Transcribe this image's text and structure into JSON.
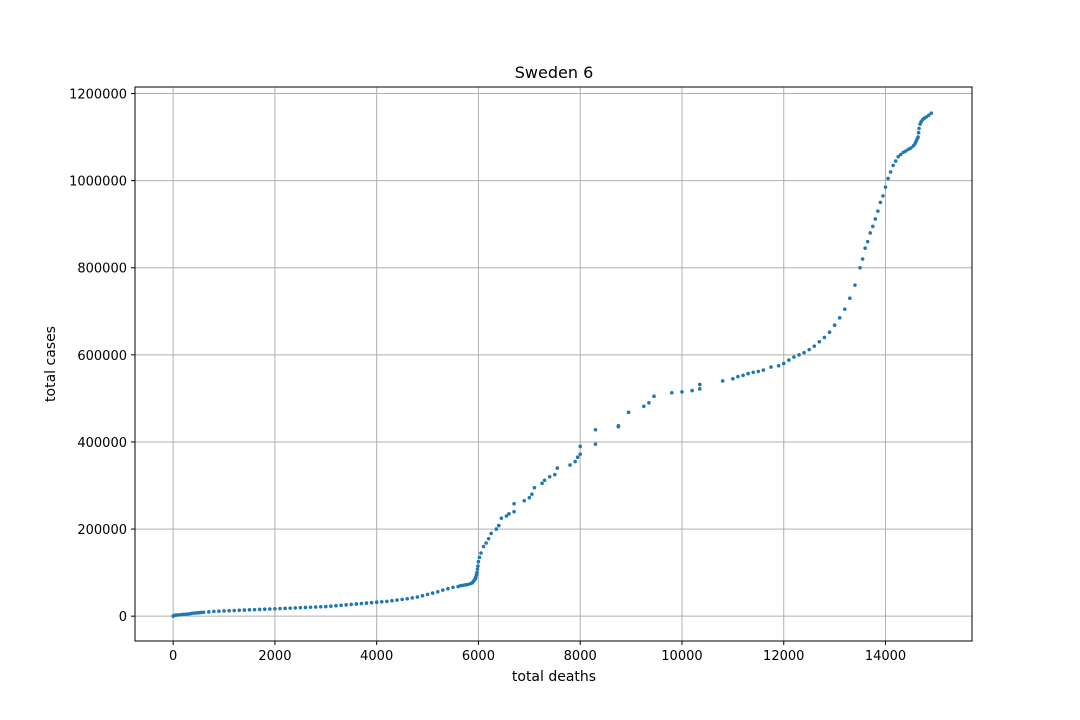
{
  "chart_data": {
    "type": "scatter",
    "title": "Sweden 6",
    "xlabel": "total deaths",
    "ylabel": "total cases",
    "xlim": [
      -750,
      15700
    ],
    "ylim": [
      -57000,
      1215000
    ],
    "x_ticks": [
      0,
      2000,
      4000,
      6000,
      8000,
      10000,
      12000,
      14000
    ],
    "y_ticks": [
      0,
      200000,
      400000,
      600000,
      800000,
      1000000,
      1200000
    ],
    "grid": true,
    "marker_color": "#1f77b4",
    "series": [
      {
        "points": [
          [
            0,
            0
          ],
          [
            10,
            1000
          ],
          [
            30,
            2000
          ],
          [
            60,
            2500
          ],
          [
            100,
            3000
          ],
          [
            150,
            3500
          ],
          [
            200,
            4000
          ],
          [
            250,
            4500
          ],
          [
            300,
            5000
          ],
          [
            350,
            6000
          ],
          [
            400,
            7000
          ],
          [
            450,
            7500
          ],
          [
            500,
            8000
          ],
          [
            550,
            8500
          ],
          [
            600,
            9000
          ],
          [
            700,
            10000
          ],
          [
            800,
            11000
          ],
          [
            900,
            11500
          ],
          [
            1000,
            12000
          ],
          [
            1100,
            12500
          ],
          [
            1200,
            13000
          ],
          [
            1300,
            13500
          ],
          [
            1400,
            14000
          ],
          [
            1500,
            14500
          ],
          [
            1600,
            15000
          ],
          [
            1700,
            15500
          ],
          [
            1800,
            16000
          ],
          [
            1900,
            16500
          ],
          [
            2000,
            17000
          ],
          [
            2100,
            17500
          ],
          [
            2200,
            18000
          ],
          [
            2300,
            18500
          ],
          [
            2400,
            19000
          ],
          [
            2500,
            19500
          ],
          [
            2600,
            20000
          ],
          [
            2700,
            20500
          ],
          [
            2800,
            21000
          ],
          [
            2900,
            21500
          ],
          [
            3000,
            22000
          ],
          [
            3100,
            23000
          ],
          [
            3200,
            24000
          ],
          [
            3300,
            25000
          ],
          [
            3400,
            26000
          ],
          [
            3500,
            27000
          ],
          [
            3600,
            28000
          ],
          [
            3700,
            29000
          ],
          [
            3800,
            30000
          ],
          [
            3900,
            31000
          ],
          [
            4000,
            32000
          ],
          [
            4100,
            33000
          ],
          [
            4200,
            34000
          ],
          [
            4300,
            35500
          ],
          [
            4400,
            37000
          ],
          [
            4500,
            38500
          ],
          [
            4600,
            40000
          ],
          [
            4700,
            42000
          ],
          [
            4800,
            44000
          ],
          [
            4900,
            47000
          ],
          [
            5000,
            50000
          ],
          [
            5100,
            53000
          ],
          [
            5200,
            56000
          ],
          [
            5300,
            60000
          ],
          [
            5400,
            63000
          ],
          [
            5500,
            66000
          ],
          [
            5600,
            68000
          ],
          [
            5650,
            70000
          ],
          [
            5700,
            71000
          ],
          [
            5750,
            72000
          ],
          [
            5800,
            73000
          ],
          [
            5850,
            75000
          ],
          [
            5880,
            77000
          ],
          [
            5900,
            80000
          ],
          [
            5920,
            83000
          ],
          [
            5940,
            86000
          ],
          [
            5950,
            90000
          ],
          [
            5960,
            95000
          ],
          [
            5970,
            100000
          ],
          [
            5980,
            108000
          ],
          [
            5990,
            115000
          ],
          [
            6000,
            125000
          ],
          [
            6020,
            135000
          ],
          [
            6050,
            145000
          ],
          [
            6100,
            160000
          ],
          [
            6150,
            168000
          ],
          [
            6200,
            178000
          ],
          [
            6250,
            190000
          ],
          [
            6350,
            200000
          ],
          [
            6400,
            208000
          ],
          [
            6450,
            225000
          ],
          [
            6550,
            230000
          ],
          [
            6600,
            235000
          ],
          [
            6700,
            240000
          ],
          [
            6700,
            258000
          ],
          [
            6900,
            265000
          ],
          [
            7000,
            272000
          ],
          [
            7050,
            280000
          ],
          [
            7100,
            295000
          ],
          [
            7250,
            305000
          ],
          [
            7300,
            312000
          ],
          [
            7400,
            320000
          ],
          [
            7500,
            325000
          ],
          [
            7550,
            340000
          ],
          [
            7800,
            347000
          ],
          [
            7900,
            355000
          ],
          [
            7950,
            365000
          ],
          [
            8000,
            372000
          ],
          [
            8000,
            390000
          ],
          [
            8300,
            395000
          ],
          [
            8300,
            428000
          ],
          [
            8750,
            435000
          ],
          [
            8750,
            437000
          ],
          [
            8950,
            468000
          ],
          [
            9250,
            482000
          ],
          [
            9350,
            490000
          ],
          [
            9450,
            505000
          ],
          [
            9800,
            513000
          ],
          [
            10000,
            515000
          ],
          [
            10200,
            518000
          ],
          [
            10350,
            522000
          ],
          [
            10350,
            532000
          ],
          [
            10800,
            540000
          ],
          [
            11000,
            545000
          ],
          [
            11100,
            550000
          ],
          [
            11200,
            553000
          ],
          [
            11300,
            557000
          ],
          [
            11400,
            560000
          ],
          [
            11500,
            562000
          ],
          [
            11600,
            565000
          ],
          [
            11750,
            572000
          ],
          [
            11900,
            575000
          ],
          [
            12000,
            580000
          ],
          [
            12100,
            588000
          ],
          [
            12200,
            595000
          ],
          [
            12300,
            600000
          ],
          [
            12400,
            605000
          ],
          [
            12500,
            612000
          ],
          [
            12600,
            620000
          ],
          [
            12700,
            630000
          ],
          [
            12800,
            640000
          ],
          [
            12900,
            652000
          ],
          [
            13000,
            668000
          ],
          [
            13100,
            685000
          ],
          [
            13200,
            705000
          ],
          [
            13300,
            730000
          ],
          [
            13400,
            760000
          ],
          [
            13500,
            800000
          ],
          [
            13550,
            820000
          ],
          [
            13600,
            845000
          ],
          [
            13650,
            860000
          ],
          [
            13700,
            880000
          ],
          [
            13750,
            895000
          ],
          [
            13800,
            912000
          ],
          [
            13850,
            930000
          ],
          [
            13900,
            950000
          ],
          [
            13950,
            965000
          ],
          [
            14000,
            985000
          ],
          [
            14050,
            1005000
          ],
          [
            14100,
            1020000
          ],
          [
            14150,
            1035000
          ],
          [
            14200,
            1045000
          ],
          [
            14250,
            1055000
          ],
          [
            14300,
            1060000
          ],
          [
            14350,
            1065000
          ],
          [
            14400,
            1068000
          ],
          [
            14450,
            1072000
          ],
          [
            14500,
            1075000
          ],
          [
            14550,
            1080000
          ],
          [
            14580,
            1085000
          ],
          [
            14600,
            1090000
          ],
          [
            14620,
            1095000
          ],
          [
            14640,
            1100000
          ],
          [
            14650,
            1110000
          ],
          [
            14660,
            1120000
          ],
          [
            14680,
            1130000
          ],
          [
            14700,
            1135000
          ],
          [
            14730,
            1140000
          ],
          [
            14760,
            1143000
          ],
          [
            14800,
            1146000
          ],
          [
            14850,
            1150000
          ],
          [
            14900,
            1155000
          ]
        ]
      }
    ]
  }
}
